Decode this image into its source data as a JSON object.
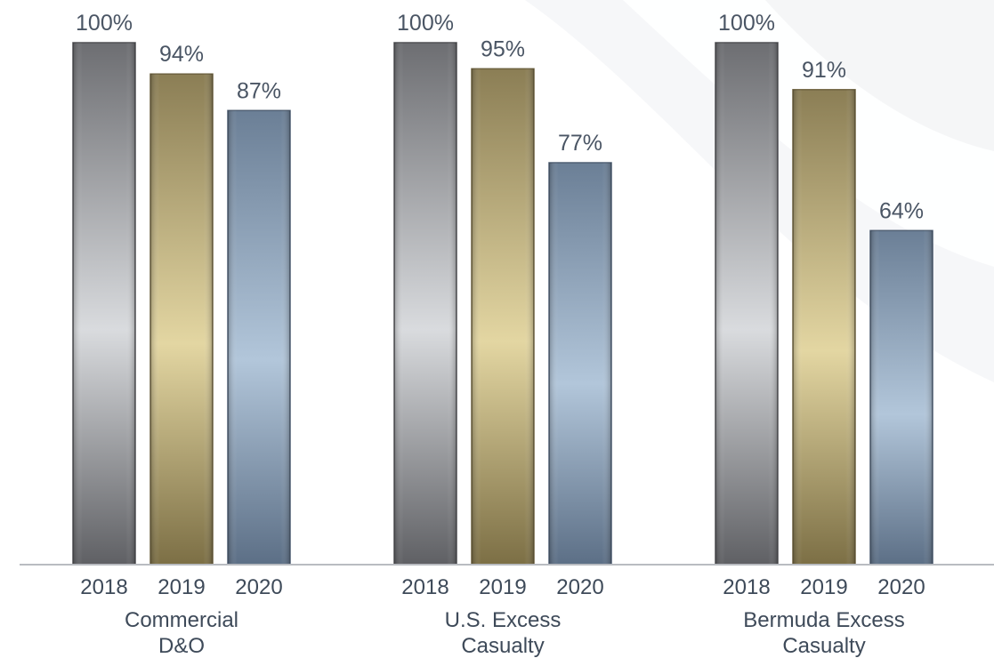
{
  "chart_data": {
    "type": "bar",
    "title": "",
    "ylabel": "",
    "ylim": [
      0,
      100
    ],
    "value_suffix": "%",
    "grid": false,
    "legend": "none",
    "groups": [
      {
        "label_lines": [
          "Commercial",
          "D&O"
        ],
        "bars": [
          {
            "year": "2018",
            "value": 100,
            "label": "100%"
          },
          {
            "year": "2019",
            "value": 94,
            "label": "94%"
          },
          {
            "year": "2020",
            "value": 87,
            "label": "87%"
          }
        ]
      },
      {
        "label_lines": [
          "U.S. Excess",
          "Casualty"
        ],
        "bars": [
          {
            "year": "2018",
            "value": 100,
            "label": "100%"
          },
          {
            "year": "2019",
            "value": 95,
            "label": "95%"
          },
          {
            "year": "2020",
            "value": 77,
            "label": "77%"
          }
        ]
      },
      {
        "label_lines": [
          "Bermuda Excess",
          "Casualty"
        ],
        "bars": [
          {
            "year": "2018",
            "value": 100,
            "label": "100%"
          },
          {
            "year": "2019",
            "value": 91,
            "label": "91%"
          },
          {
            "year": "2020",
            "value": 64,
            "label": "64%"
          }
        ]
      }
    ],
    "colors": {
      "2018": "silver",
      "2019": "gold",
      "2020": "steel-blue"
    }
  }
}
